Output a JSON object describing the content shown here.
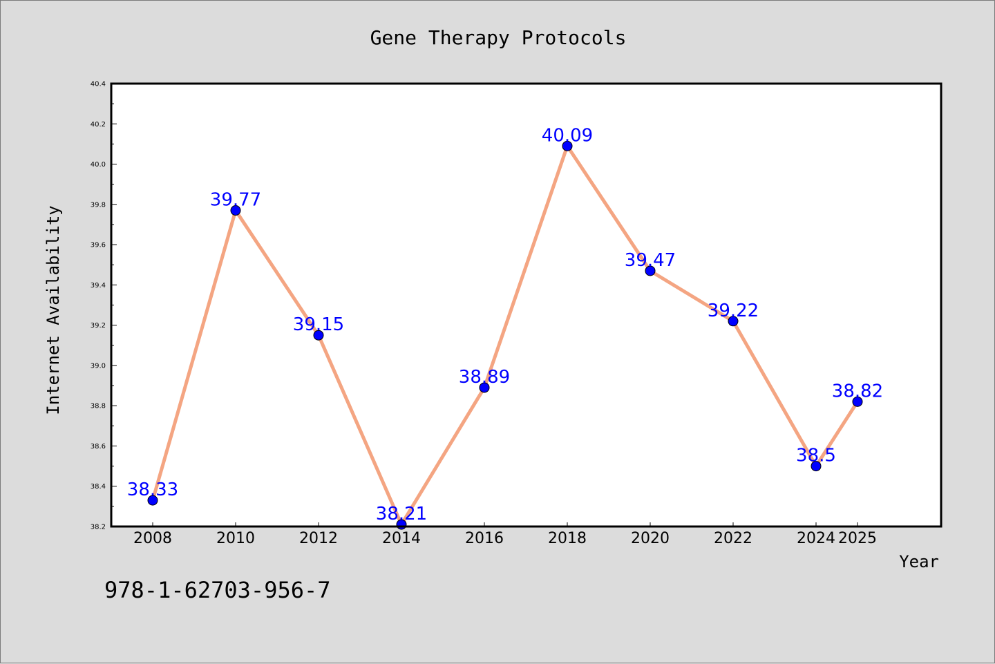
{
  "footer_text": "978-1-62703-956-7",
  "chart_data": {
    "type": "line",
    "title": "Gene Therapy Protocols",
    "xlabel": "Year",
    "ylabel": "Internet Availability",
    "categories": [
      "2008",
      "2010",
      "2012",
      "2014",
      "2016",
      "2018",
      "2020",
      "2022",
      "2024",
      "2025"
    ],
    "series": [
      {
        "values": [
          38.33,
          39.77,
          39.15,
          38.21,
          38.89,
          40.09,
          39.47,
          39.22,
          38.5,
          38.82
        ],
        "data_labels": [
          "38.33",
          "39.77",
          "39.15",
          "38.21",
          "38.89",
          "40.09",
          "39.47",
          "39.22",
          "38.5",
          "38.82"
        ],
        "line_color": "#f4a582",
        "marker_color": "#0000ff"
      }
    ],
    "ylim": [
      38.2,
      40.4
    ],
    "yticks": [
      "38.2",
      "38.4",
      "38.6",
      "38.8",
      "39.0",
      "39.2",
      "39.4",
      "39.6",
      "39.8",
      "40.0",
      "40.2",
      "40.4"
    ],
    "grid": false,
    "legend": "none",
    "background": "#dcdcdc",
    "plot_background": "#ffffff",
    "label_color": "#0000ff"
  }
}
